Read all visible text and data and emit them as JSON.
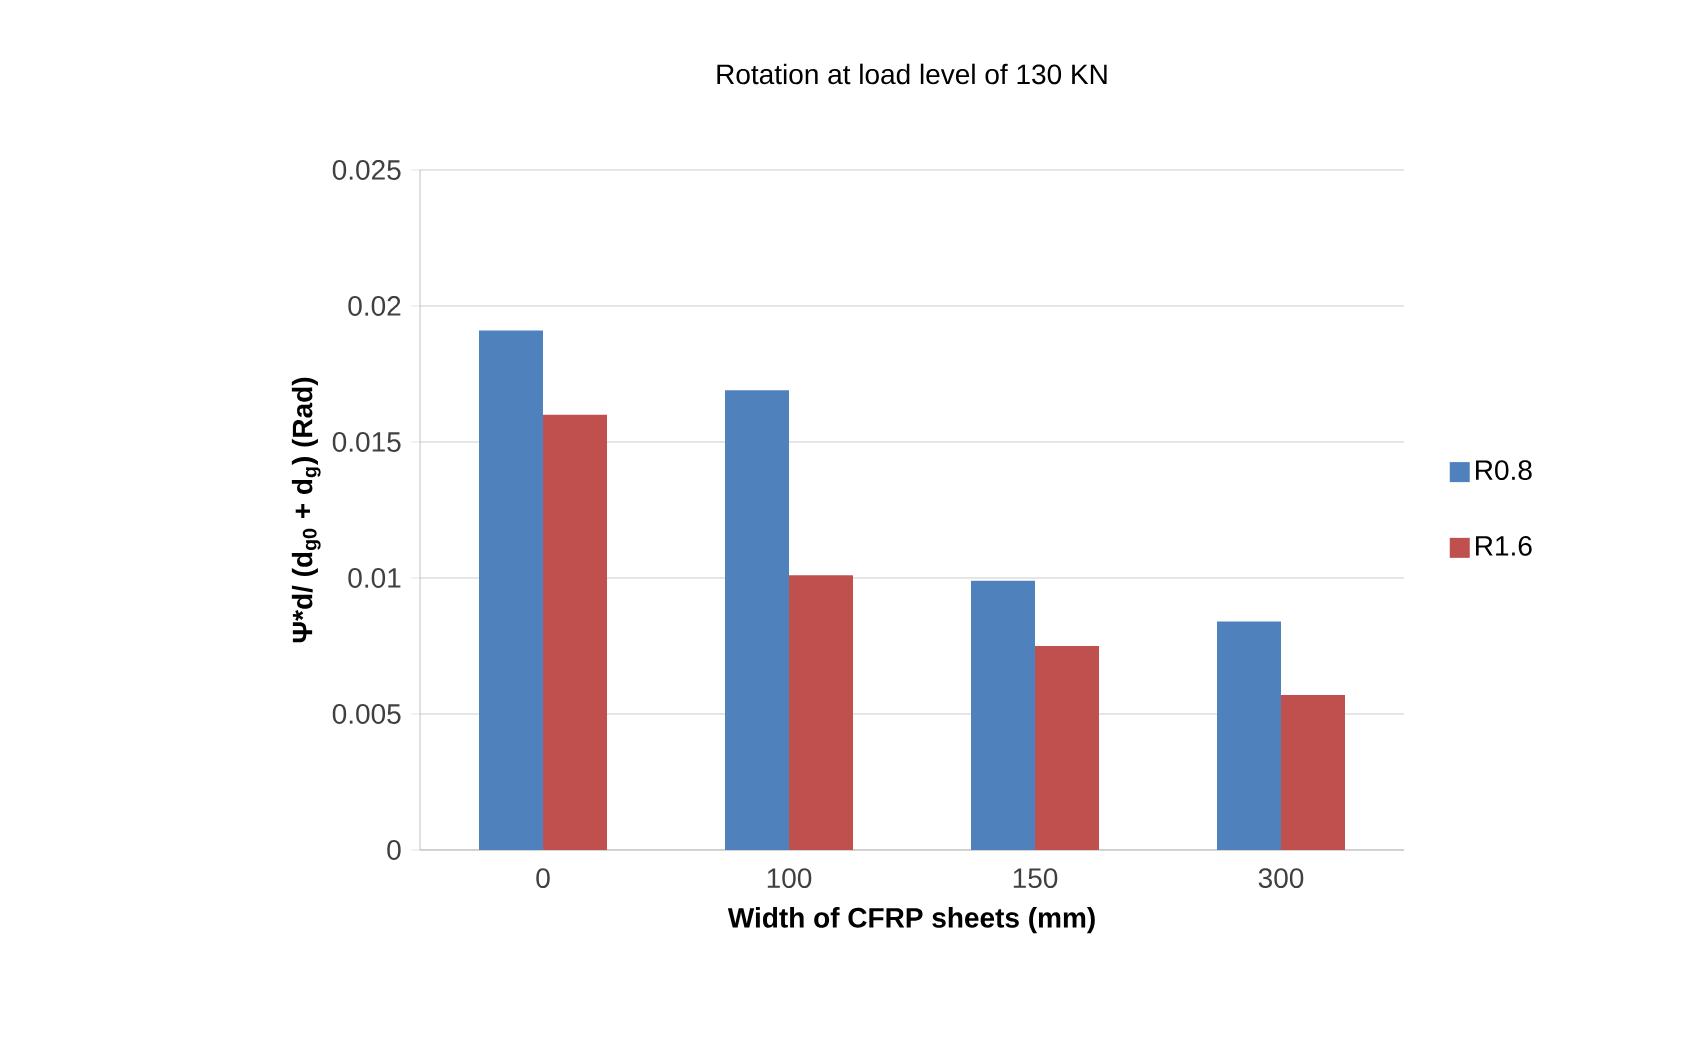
{
  "chart_data": {
    "type": "bar",
    "title": "Rotation at load level of 130 KN",
    "xlabel": "Width of CFRP sheets  (mm)",
    "ylabel": "Ψ*d/ (d$_{g0}$ + d$_{g}$)  (Rad)",
    "categories": [
      "0",
      "100",
      "150",
      "300"
    ],
    "series": [
      {
        "name": "R0.8",
        "color": "#4f81bd",
        "values": [
          0.0191,
          0.0169,
          0.0099,
          0.0084
        ]
      },
      {
        "name": "R1.6",
        "color": "#c0504d",
        "values": [
          0.016,
          0.0101,
          0.0075,
          0.0057
        ]
      }
    ],
    "ylim": [
      0,
      0.025
    ],
    "yticks": [
      0,
      0.005,
      0.01,
      0.015,
      0.02,
      0.025
    ],
    "grid": "y",
    "legend": "right"
  }
}
